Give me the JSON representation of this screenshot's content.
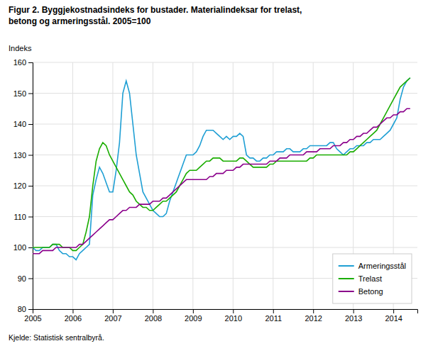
{
  "chart_data": {
    "type": "line",
    "title": "Figur 2. Byggjekostnadsindeks for bustader. Materialindeksar for trelast,",
    "subtitle": "betong og armeringsstål. 2005=100",
    "y_label": "Indeks",
    "annotations": [
      "Kjelde: Statistisk sentralbyrå."
    ],
    "x": [
      2005,
      2005.083363,
      2005.166726,
      2005.250088,
      2005.333451,
      2005.416814,
      2005.500177,
      2005.58354,
      2005.666903,
      2005.750265,
      2005.833628,
      2005.916991,
      2006.000354,
      2006.083717,
      2006.16708,
      2006.250442,
      2006.333805,
      2006.417168,
      2006.500531,
      2006.583894,
      2006.667257,
      2006.750619,
      2006.833982,
      2006.917345,
      2007.000708,
      2007.084071,
      2007.167434,
      2007.250796,
      2007.334159,
      2007.417522,
      2007.500885,
      2007.584248,
      2007.667611,
      2007.750973,
      2007.834336,
      2007.917699,
      2008.001062,
      2008.084425,
      2008.167788,
      2008.25115,
      2008.334513,
      2008.417876,
      2008.501239,
      2008.584602,
      2008.667965,
      2008.751327,
      2008.83469,
      2008.918053,
      2009.001416,
      2009.084779,
      2009.168142,
      2009.251504,
      2009.334867,
      2009.41823,
      2009.501593,
      2009.584956,
      2009.668319,
      2009.751681,
      2009.835044,
      2009.918407,
      2010.00177,
      2010.085133,
      2010.168496,
      2010.251858,
      2010.335221,
      2010.418584,
      2010.501947,
      2010.58531,
      2010.668673,
      2010.752035,
      2010.835398,
      2010.918761,
      2011.002124,
      2011.085487,
      2011.16885,
      2011.252212,
      2011.335575,
      2011.418938,
      2011.502301,
      2011.585664,
      2011.669027,
      2011.752389,
      2011.835752,
      2011.919115,
      2012.002478,
      2012.085841,
      2012.169204,
      2012.252566,
      2012.335929,
      2012.419292,
      2012.502655,
      2012.586018,
      2012.669381,
      2012.752743,
      2012.836106,
      2012.919469,
      2013.002832,
      2013.086195,
      2013.169558,
      2013.25292,
      2013.336283,
      2013.419646,
      2013.503009,
      2013.586372,
      2013.669735,
      2013.753097,
      2013.83646,
      2013.919823,
      2014.003186,
      2014.086549,
      2014.169912,
      2014.253274,
      2014.336637,
      2014.42
    ],
    "series": [
      {
        "name": "Armeringsstål",
        "color": "#1f9fd4",
        "values": [
          100,
          99,
          99,
          100,
          100,
          100,
          101,
          101,
          99,
          98,
          98,
          97,
          97,
          96,
          98,
          99,
          100,
          101,
          117,
          122,
          126,
          124,
          121,
          118,
          118,
          125,
          134,
          150,
          154,
          150,
          140,
          130,
          124,
          118,
          116,
          114,
          112,
          111,
          110,
          110,
          111,
          115,
          118,
          121,
          124,
          127,
          130,
          130,
          130,
          131,
          133,
          136,
          138,
          138,
          138,
          137,
          136,
          135,
          136,
          135,
          136,
          136,
          137,
          136,
          130,
          129,
          129,
          128,
          128,
          129,
          129,
          130,
          130,
          131,
          131,
          131,
          132,
          132,
          131,
          131,
          131,
          132,
          132,
          133,
          133,
          133,
          133,
          133,
          133,
          134,
          134,
          132,
          131,
          130,
          131,
          132,
          132,
          133,
          133,
          133,
          134,
          134,
          135,
          135,
          135,
          136,
          137,
          138,
          140,
          142,
          148,
          152,
          154,
          155
        ]
      },
      {
        "name": "Trelast",
        "color": "#1aad00",
        "values": [
          100,
          100,
          100,
          100,
          100,
          100,
          101,
          101,
          101,
          100,
          100,
          100,
          99,
          99,
          100,
          101,
          105,
          110,
          120,
          128,
          132,
          134,
          133,
          130,
          128,
          126,
          124,
          122,
          120,
          118,
          117,
          115,
          114,
          113,
          113,
          112,
          112,
          113,
          114,
          115,
          115,
          116,
          117,
          118,
          120,
          122,
          124,
          125,
          125,
          125,
          126,
          127,
          128,
          128,
          129,
          129,
          129,
          128,
          128,
          128,
          128,
          128,
          129,
          129,
          128,
          127,
          126,
          126,
          126,
          126,
          126,
          127,
          127,
          128,
          128,
          128,
          128,
          128,
          128,
          128,
          128,
          128,
          128,
          129,
          129,
          130,
          130,
          130,
          130,
          130,
          130,
          130,
          130,
          130,
          130,
          131,
          131,
          132,
          133,
          134,
          135,
          136,
          137,
          138,
          140,
          142,
          144,
          146,
          148,
          150,
          152,
          153,
          154,
          155
        ]
      },
      {
        "name": "Betong",
        "color": "#8b008b",
        "values": [
          98,
          98,
          98,
          99,
          99,
          99,
          99,
          100,
          100,
          100,
          100,
          100,
          100,
          100,
          101,
          101,
          102,
          103,
          104,
          105,
          106,
          107,
          108,
          109,
          109,
          110,
          111,
          112,
          112,
          113,
          113,
          113,
          114,
          114,
          114,
          114,
          115,
          115,
          115,
          116,
          116,
          117,
          118,
          119,
          120,
          121,
          122,
          122,
          122,
          122,
          122,
          122,
          122,
          123,
          123,
          124,
          124,
          124,
          125,
          125,
          125,
          126,
          126,
          127,
          127,
          127,
          127,
          127,
          127,
          127,
          127,
          128,
          128,
          128,
          129,
          129,
          129,
          130,
          130,
          130,
          130,
          130,
          131,
          131,
          131,
          131,
          132,
          132,
          132,
          132,
          133,
          133,
          133,
          134,
          134,
          135,
          135,
          136,
          136,
          137,
          137,
          138,
          139,
          139,
          140,
          141,
          142,
          142,
          143,
          143,
          144,
          144,
          145,
          145
        ]
      }
    ],
    "xlim": [
      2005,
      2014.6
    ],
    "xticks": [
      2005,
      2006,
      2007,
      2008,
      2009,
      2010,
      2011,
      2012,
      2013,
      2014
    ],
    "ylim": [
      80,
      160
    ],
    "yticks": [
      80,
      90,
      100,
      110,
      120,
      130,
      140,
      150,
      160
    ],
    "grid": true,
    "legend": "lower right"
  }
}
